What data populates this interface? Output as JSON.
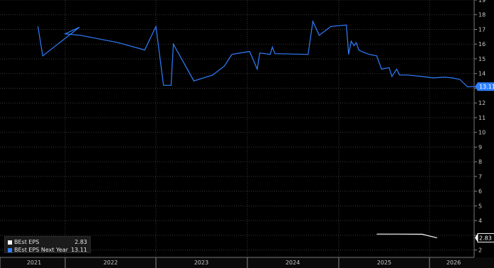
{
  "chart_data": {
    "type": "line",
    "y_axis": {
      "min": 1.5,
      "max": 19,
      "ticks": [
        2,
        3,
        4,
        5,
        6,
        7,
        8,
        9,
        10,
        11,
        12,
        13,
        14,
        15,
        16,
        17,
        18,
        19
      ],
      "position": "right"
    },
    "x_axis": {
      "tick_labels": [
        "2021",
        "2022",
        "2023",
        "2024",
        "2025",
        "2026"
      ]
    },
    "grid": true,
    "legend_position": "bottom-left",
    "series": [
      {
        "name": "BEst EPS",
        "color": "#ffffff",
        "last_value": 2.83,
        "last_value_label": "2.83",
        "points": [
          [
            "2025-06",
            3.08
          ],
          [
            "2025-09",
            3.08
          ],
          [
            "2025-12",
            3.07
          ],
          [
            "2026-01",
            2.95
          ],
          [
            "2026-02",
            2.83
          ]
        ]
      },
      {
        "name": "BEst EPS Next Year",
        "color": "#2f7fff",
        "last_value": 13.11,
        "last_value_label": "13.11",
        "points": [
          [
            "2021-06-01",
            17.2
          ],
          [
            "2021-06-20",
            15.2
          ],
          [
            "2021-11-15",
            17.15
          ],
          [
            "2022-01-01",
            16.7
          ],
          [
            "2022-03-01",
            16.6
          ],
          [
            "2022-08-01",
            16.1
          ],
          [
            "2022-11-15",
            15.6
          ],
          [
            "2023-01-01",
            17.2
          ],
          [
            "2023-02-01",
            13.2
          ],
          [
            "2023-03-01",
            13.2
          ],
          [
            "2023-03-10",
            16.0
          ],
          [
            "2023-06-01",
            13.5
          ],
          [
            "2023-08-15",
            13.9
          ],
          [
            "2023-10-01",
            14.5
          ],
          [
            "2023-11-01",
            15.3
          ],
          [
            "2024-01-10",
            15.5
          ],
          [
            "2024-02-10",
            14.3
          ],
          [
            "2024-02-20",
            15.4
          ],
          [
            "2024-04-01",
            15.3
          ],
          [
            "2024-04-10",
            15.8
          ],
          [
            "2024-04-20",
            15.35
          ],
          [
            "2024-09-01",
            15.3
          ],
          [
            "2024-09-20",
            17.55
          ],
          [
            "2024-10-15",
            16.6
          ],
          [
            "2024-12-01",
            17.2
          ],
          [
            "2025-02-01",
            17.3
          ],
          [
            "2025-02-10",
            15.3
          ],
          [
            "2025-02-20",
            16.2
          ],
          [
            "2025-03-01",
            15.9
          ],
          [
            "2025-03-10",
            16.1
          ],
          [
            "2025-03-20",
            15.6
          ],
          [
            "2025-04-01",
            15.5
          ],
          [
            "2025-05-01",
            15.3
          ],
          [
            "2025-06-01",
            15.2
          ],
          [
            "2025-06-20",
            14.3
          ],
          [
            "2025-07-20",
            14.4
          ],
          [
            "2025-08-01",
            13.8
          ],
          [
            "2025-08-20",
            14.3
          ],
          [
            "2025-09-01",
            13.9
          ],
          [
            "2025-10-01",
            13.9
          ],
          [
            "2025-12-01",
            13.8
          ],
          [
            "2026-01-15",
            13.7
          ],
          [
            "2026-03-01",
            13.75
          ],
          [
            "2026-04-01",
            13.7
          ],
          [
            "2026-05-01",
            13.6
          ],
          [
            "2026-06-01",
            13.1
          ],
          [
            "2026-07-01",
            13.11
          ]
        ]
      }
    ]
  },
  "legend": {
    "items": [
      {
        "label": "BEst EPS",
        "value": "2.83",
        "color": "#ffffff"
      },
      {
        "label": "BEst EPS Next Year",
        "value": "13.11",
        "color": "#2f7fff"
      }
    ]
  }
}
